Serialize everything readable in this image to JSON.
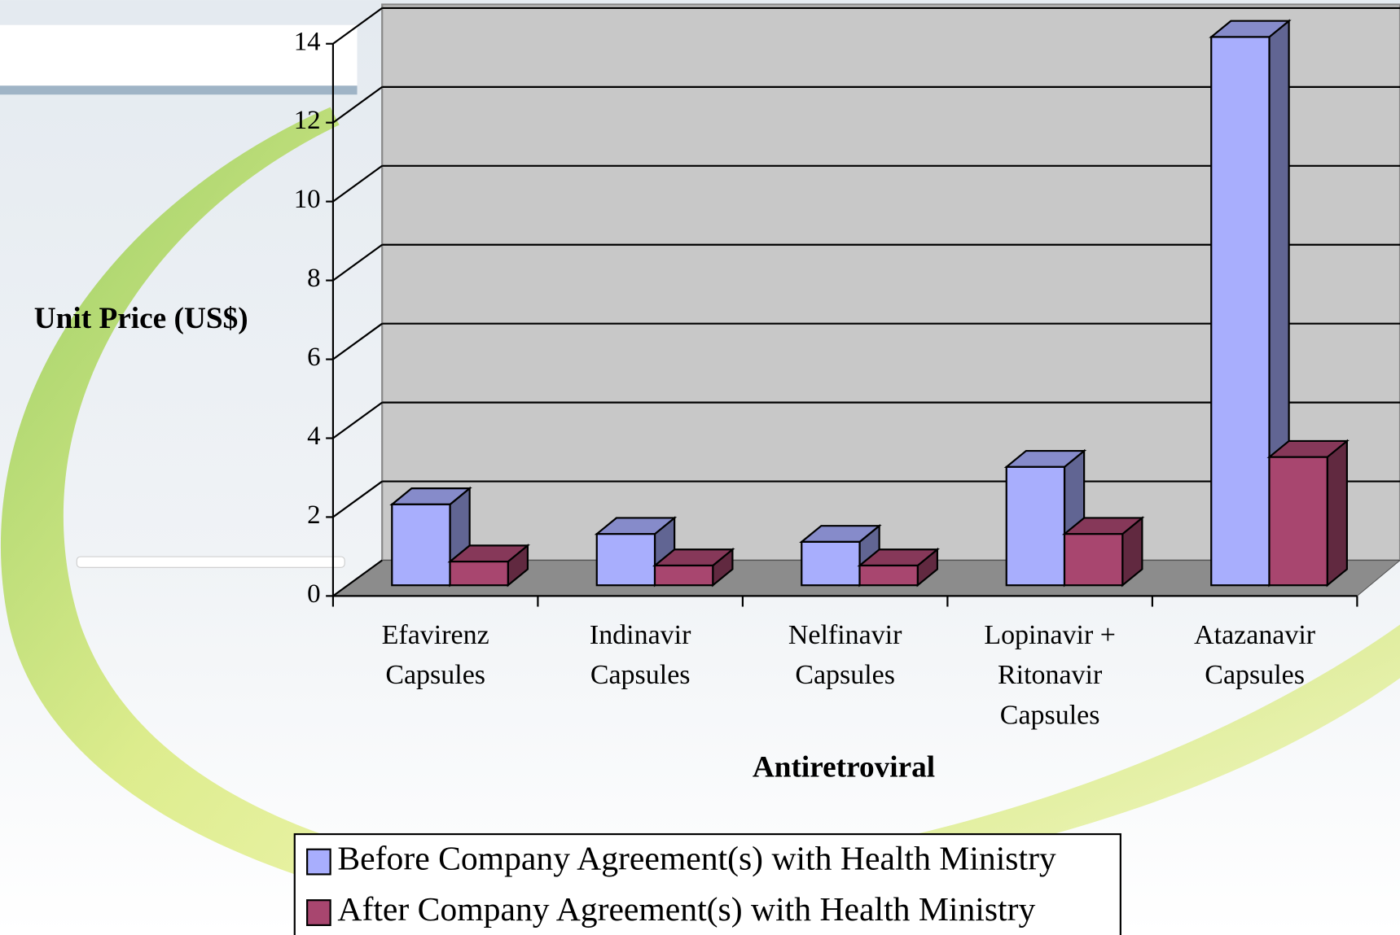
{
  "chart_data": {
    "type": "bar3d",
    "x_label": "Antiretroviral",
    "y_label": "Unit Price (US$)",
    "categories": [
      "Efavirenz\nCapsules",
      "Indinavir\nCapsules",
      "Nelfinavir\nCapsules",
      "Lopinavir +\nRitonavir\nCapsules",
      "Atazanavir\nCapsules"
    ],
    "series": [
      {
        "name": "Before Company Agreement(s) with Health Ministry",
        "color": "#a8aefd",
        "values": [
          2.05,
          1.3,
          1.1,
          3.0,
          13.9
        ]
      },
      {
        "name": "After Company Agreement(s) with Health Ministry",
        "color": "#a8466f",
        "values": [
          0.6,
          0.5,
          0.5,
          1.3,
          3.25
        ]
      }
    ],
    "ylim": [
      0,
      14
    ],
    "yticks": [
      0,
      2,
      4,
      6,
      8,
      10,
      12,
      14
    ],
    "grid": true,
    "legend": "bottom"
  }
}
